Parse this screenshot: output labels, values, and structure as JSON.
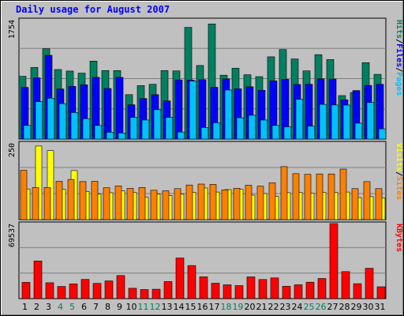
{
  "chart_data": {
    "type": "bar",
    "title": "Daily usage for August 2007",
    "categories": [
      "1",
      "2",
      "3",
      "4",
      "5",
      "6",
      "7",
      "8",
      "9",
      "10",
      "11",
      "12",
      "13",
      "14",
      "15",
      "16",
      "17",
      "18",
      "19",
      "20",
      "21",
      "22",
      "23",
      "24",
      "25",
      "26",
      "27",
      "28",
      "29",
      "30",
      "31"
    ],
    "weekend_days": [
      "4",
      "5",
      "11",
      "12",
      "18",
      "19",
      "25",
      "26"
    ],
    "panels": [
      {
        "id": "hits",
        "ymax_label": "1754",
        "ymax": 1754,
        "ylabel_parts": [
          "Pages",
          "/",
          "Files",
          "/",
          "Hits"
        ],
        "series": [
          {
            "name": "Hits",
            "color": "#008060",
            "values": [
              922,
              1052,
              1328,
              1022,
              1000,
              969,
              1147,
              1007,
              1007,
              653,
              786,
              805,
              1007,
              1002,
              1642,
              1082,
              1693,
              938,
              1042,
              946,
              918,
              1209,
              1316,
              1178,
              1003,
              1240,
              1169,
              639,
              683,
              1123,
              951
            ]
          },
          {
            "name": "Files",
            "color": "#0000ff",
            "values": [
              760,
              900,
              1231,
              736,
              775,
              798,
              907,
              743,
              907,
              504,
              596,
              653,
              561,
              869,
              866,
              872,
              761,
              884,
              739,
              769,
              717,
              855,
              878,
              803,
              806,
              886,
              882,
              577,
              713,
              789,
              805
            ]
          },
          {
            "name": "Pages",
            "color": "#00c0ff",
            "values": [
              200,
              550,
              600,
              520,
              390,
              300,
              200,
              100,
              90,
              320,
              280,
              431,
              320,
              102,
              852,
              170,
              240,
              720,
              312,
              350,
              280,
              200,
              180,
              586,
              190,
              510,
              501,
              500,
              233,
              538,
              150
            ]
          }
        ]
      },
      {
        "id": "visits",
        "ymax_label": "250",
        "ymax": 250,
        "ylabel_parts": [
          "Sites",
          "/",
          "Visits"
        ],
        "series": [
          {
            "name": "Visits",
            "color": "#ffff00",
            "values": [
              100,
              240,
              225,
              99,
              160,
              92,
              83,
              88,
              94,
              89,
              73,
              83,
              79,
              83,
              89,
              103,
              90,
              98,
              99,
              80,
              85,
              76,
              88,
              89,
              86,
              89,
              89,
              90,
              72,
              75,
              70
            ]
          },
          {
            "name": "Sites",
            "color": "#ff8000",
            "values": [
              161,
              105,
              105,
              125,
              131,
              124,
              125,
              104,
              110,
              102,
              105,
              96,
              94,
              101,
              113,
              116,
              115,
              97,
              102,
              112,
              109,
              120,
              173,
              150,
              148,
              149,
              149,
              165,
              101,
              124,
              101
            ]
          }
        ]
      },
      {
        "id": "kbytes",
        "ymax_label": "69537",
        "ymax": 69537,
        "ylabel_parts": [
          "KBytes"
        ],
        "series": [
          {
            "name": "KBytes",
            "color": "#ff0000",
            "values": [
              15100,
              34900,
              14700,
              11300,
              13600,
              17800,
              14100,
              16400,
              21400,
              9600,
              8400,
              8700,
              15800,
              37600,
              30700,
              20200,
              14300,
              12800,
              12100,
              20100,
              17700,
              19200,
              11400,
              12800,
              15200,
              18700,
              69537,
              25000,
              13800,
              28100,
              11000
            ]
          }
        ]
      }
    ]
  }
}
